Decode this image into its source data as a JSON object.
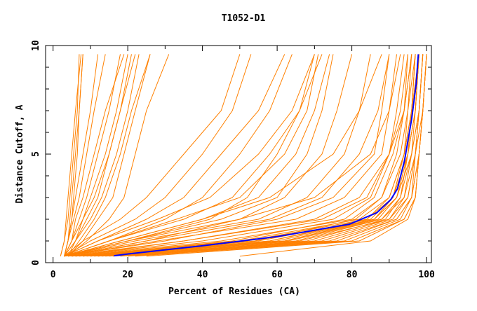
{
  "chart_data": {
    "type": "line",
    "title": "T1052-D1",
    "xlabel": "Percent of Residues (CA)",
    "ylabel": "Distance Cutoff, A",
    "xlim": [
      -2,
      101.3
    ],
    "ylim": [
      0,
      10
    ],
    "x_ticks": [
      0,
      20,
      40,
      60,
      80,
      100
    ],
    "y_ticks": [
      0,
      5,
      10
    ],
    "grid": false,
    "colors": {
      "models": "#ff8000",
      "highlight": "#0000ff"
    },
    "model_curve_y_levels": [
      0.3,
      1,
      2,
      3,
      5,
      7,
      9.6
    ],
    "model_curves_x": [
      [
        2,
        3,
        4,
        4.5,
        5.5,
        6.5,
        7
      ],
      [
        2,
        3,
        3.5,
        4,
        5,
        6,
        7.5
      ],
      [
        3,
        4,
        4.5,
        5,
        6,
        7,
        8
      ],
      [
        3,
        4,
        5,
        6,
        8,
        10,
        12
      ],
      [
        3,
        4,
        5.5,
        7,
        9,
        11,
        14
      ],
      [
        3,
        5,
        7,
        9,
        12,
        15,
        18
      ],
      [
        3,
        5,
        6,
        8,
        11,
        14,
        19
      ],
      [
        3,
        5,
        8,
        10,
        14,
        17,
        20
      ],
      [
        3,
        6,
        8,
        11,
        15,
        18,
        21
      ],
      [
        4,
        6,
        9,
        12,
        15,
        18,
        22
      ],
      [
        3,
        6,
        10,
        13,
        17,
        20,
        23
      ],
      [
        4,
        7,
        11,
        14,
        18,
        21,
        26
      ],
      [
        4,
        8,
        12,
        16,
        19,
        22,
        26
      ],
      [
        4,
        9,
        15,
        19,
        22,
        25,
        31
      ],
      [
        3,
        4,
        5,
        5.5,
        6.5,
        7,
        8
      ],
      [
        3,
        8,
        18,
        25,
        35,
        45,
        50
      ],
      [
        3,
        10,
        22,
        30,
        40,
        48,
        53
      ],
      [
        3,
        12,
        25,
        35,
        45,
        55,
        62
      ],
      [
        3,
        15,
        30,
        40,
        50,
        58,
        64
      ],
      [
        3,
        12,
        28,
        42,
        55,
        64,
        70
      ],
      [
        3,
        15,
        35,
        48,
        58,
        66,
        72
      ],
      [
        3,
        18,
        40,
        55,
        65,
        70,
        74
      ],
      [
        3,
        20,
        45,
        60,
        68,
        72,
        75
      ],
      [
        3,
        25,
        50,
        62,
        72,
        76,
        80
      ],
      [
        3,
        22,
        55,
        68,
        78,
        82,
        85
      ],
      [
        3,
        25,
        58,
        72,
        82,
        87,
        90
      ],
      [
        3,
        20,
        50,
        70,
        85,
        90,
        93
      ],
      [
        3,
        18,
        40,
        58,
        75,
        82,
        88
      ],
      [
        3,
        30,
        60,
        75,
        86,
        88,
        90
      ],
      [
        3,
        28,
        65,
        78,
        88,
        90,
        92
      ],
      [
        5,
        35,
        70,
        82,
        90,
        92,
        94
      ],
      [
        3,
        15,
        33,
        50,
        62,
        68,
        71
      ],
      [
        3,
        20,
        42,
        52,
        60,
        66,
        70
      ],
      [
        4,
        45,
        80,
        88,
        92,
        94,
        95
      ],
      [
        5,
        50,
        82,
        90,
        94,
        96,
        97
      ],
      [
        6,
        55,
        85,
        91,
        94,
        96,
        97
      ],
      [
        8,
        60,
        86,
        92,
        95,
        97,
        98
      ],
      [
        10,
        62,
        87,
        92,
        95,
        97,
        98
      ],
      [
        12,
        65,
        88,
        93,
        95,
        96,
        97
      ],
      [
        15,
        68,
        89,
        93,
        96,
        97,
        98
      ],
      [
        5,
        52,
        84,
        91,
        94,
        95,
        96
      ],
      [
        7,
        58,
        86,
        92,
        96,
        98,
        99
      ],
      [
        9,
        63,
        88,
        94,
        96,
        98,
        99
      ],
      [
        11,
        66,
        90,
        94,
        97,
        98,
        99
      ],
      [
        13,
        70,
        90,
        95,
        97,
        98,
        99
      ],
      [
        14,
        72,
        91,
        95,
        97,
        99,
        100
      ],
      [
        16,
        74,
        92,
        96,
        97,
        98,
        99
      ],
      [
        18,
        76,
        92,
        96,
        98,
        99,
        100
      ],
      [
        20,
        78,
        93,
        96,
        98,
        99,
        100
      ],
      [
        6,
        48,
        78,
        86,
        91,
        94,
        96
      ],
      [
        8,
        54,
        81,
        88,
        93,
        95,
        97
      ],
      [
        10,
        58,
        84,
        90,
        94,
        96,
        98
      ],
      [
        12,
        62,
        86,
        91,
        95,
        97,
        98
      ],
      [
        4,
        40,
        75,
        85,
        90,
        93,
        95
      ],
      [
        3,
        35,
        72,
        84,
        90,
        94,
        96
      ],
      [
        22,
        80,
        94,
        97,
        98,
        99,
        100
      ],
      [
        25,
        82,
        94,
        97,
        98,
        99,
        100
      ],
      [
        50,
        85,
        95,
        97,
        98,
        99,
        100
      ]
    ],
    "highlight_curve": [
      [
        16.3,
        0.32
      ],
      [
        20,
        0.4
      ],
      [
        40,
        0.78
      ],
      [
        60,
        1.2
      ],
      [
        79.3,
        1.77
      ],
      [
        86.7,
        2.3
      ],
      [
        90.4,
        2.9
      ],
      [
        92.2,
        3.4
      ],
      [
        94.1,
        4.7
      ],
      [
        96,
        6.6
      ],
      [
        97.2,
        8.2
      ],
      [
        97.8,
        9.6
      ]
    ]
  }
}
